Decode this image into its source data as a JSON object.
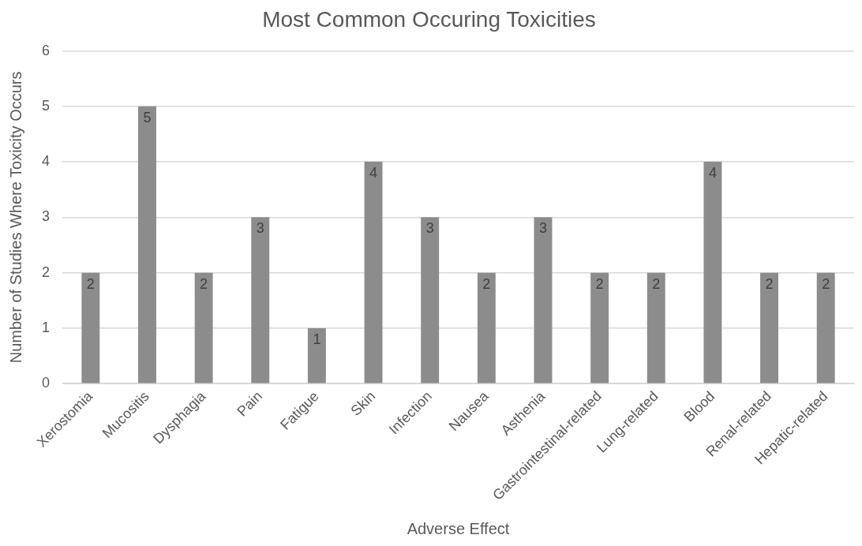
{
  "chart_data": {
    "type": "bar",
    "title": "Most Common Occuring Toxicities",
    "xlabel": "Adverse Effect",
    "ylabel": "Number of Studies Where Toxicity Occurs",
    "categories": [
      "Xerostomia",
      "Mucositis",
      "Dysphagia",
      "Pain",
      "Fatigue",
      "Skin",
      "Infection",
      "Nausea",
      "Asthenia",
      "Gastrointestinal-related",
      "Lung-related",
      "Blood",
      "Renal-related",
      "Hepatic-related"
    ],
    "values": [
      2,
      5,
      2,
      3,
      1,
      4,
      3,
      2,
      3,
      2,
      2,
      4,
      2,
      2
    ],
    "color": "#8c8c8c",
    "ylim": [
      0,
      6
    ],
    "yticks": [
      0,
      1,
      2,
      3,
      4,
      5,
      6
    ],
    "grid": "y",
    "legend": false,
    "data_labels": true
  }
}
